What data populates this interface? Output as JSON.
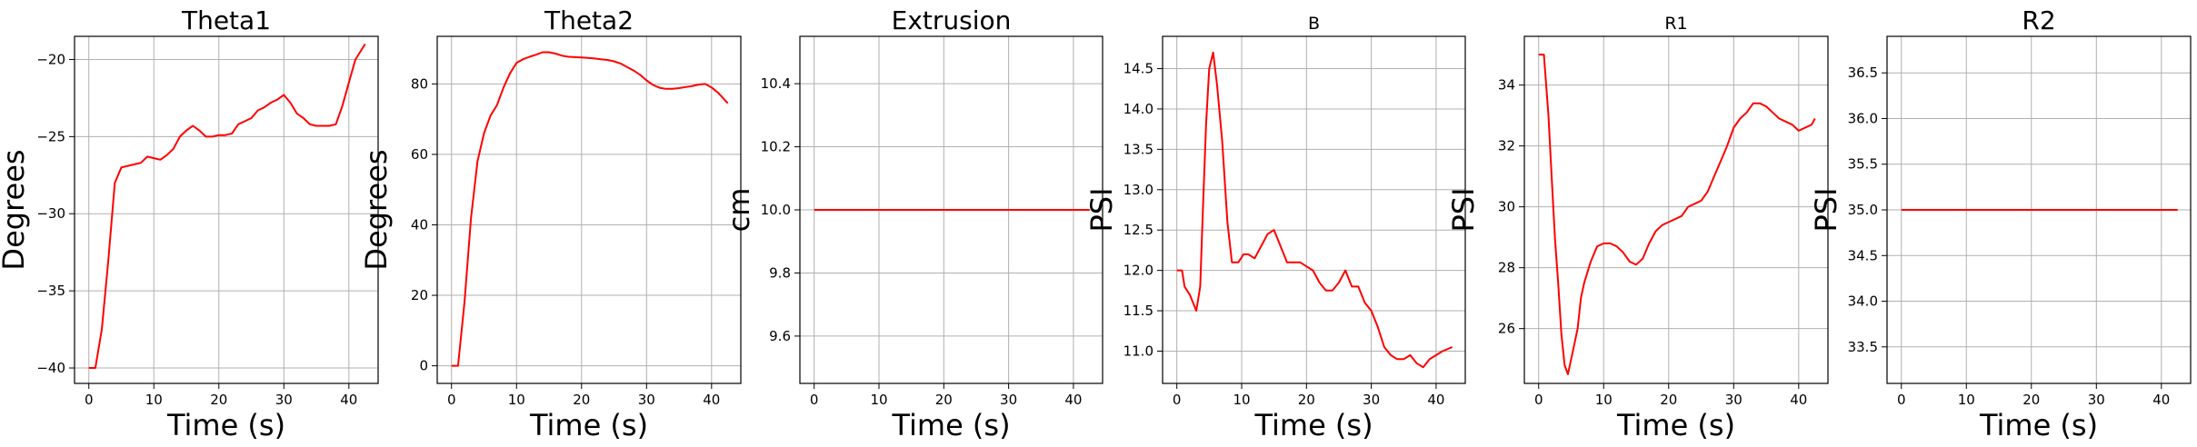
{
  "chart_data": [
    {
      "type": "line",
      "title": "Theta1",
      "xlabel": "Time (s)",
      "ylabel": "Degrees",
      "xlim": [
        -2.2,
        44.5
      ],
      "ylim": [
        -41,
        -18.5
      ],
      "xticks": [
        0,
        10,
        20,
        30,
        40
      ],
      "yticks": [
        -40,
        -35,
        -30,
        -25,
        -20
      ],
      "ytick_labels": [
        "−40",
        "−35",
        "−30",
        "−25",
        "−20"
      ],
      "grid": true,
      "series": [
        {
          "color": "#ff0000",
          "x": [
            0,
            1,
            2,
            3,
            4,
            5,
            6,
            7,
            8,
            9,
            10,
            11,
            12,
            13,
            14,
            15,
            16,
            17,
            18,
            19,
            20,
            21,
            22,
            23,
            24,
            25,
            26,
            27,
            28,
            29,
            30,
            31,
            32,
            33,
            34,
            35,
            36,
            37,
            38,
            39,
            40,
            41,
            42.5
          ],
          "y": [
            -40,
            -40,
            -37.5,
            -33,
            -28,
            -27,
            -26.9,
            -26.8,
            -26.7,
            -26.3,
            -26.4,
            -26.5,
            -26.2,
            -25.8,
            -25,
            -24.6,
            -24.3,
            -24.6,
            -25,
            -25,
            -24.9,
            -24.9,
            -24.8,
            -24.2,
            -24,
            -23.8,
            -23.3,
            -23.1,
            -22.8,
            -22.6,
            -22.3,
            -22.8,
            -23.5,
            -23.8,
            -24.2,
            -24.3,
            -24.3,
            -24.3,
            -24.2,
            -23,
            -21.5,
            -20,
            -19
          ]
        }
      ]
    },
    {
      "type": "line",
      "title": "Theta2",
      "xlabel": "Time (s)",
      "ylabel": "Degrees",
      "xlim": [
        -2.2,
        44.5
      ],
      "ylim": [
        -5,
        93.5
      ],
      "xticks": [
        0,
        10,
        20,
        30,
        40
      ],
      "yticks": [
        0,
        20,
        40,
        60,
        80
      ],
      "ytick_labels": [
        "0",
        "20",
        "40",
        "60",
        "80"
      ],
      "grid": true,
      "series": [
        {
          "color": "#ff0000",
          "x": [
            0,
            1,
            2,
            3,
            4,
            5,
            6,
            7,
            8,
            9,
            10,
            11,
            12,
            13,
            14,
            15,
            16,
            17,
            18,
            19,
            20,
            21,
            22,
            23,
            24,
            25,
            26,
            27,
            28,
            29,
            30,
            31,
            32,
            33,
            34,
            35,
            36,
            37,
            38,
            39,
            40,
            41,
            42.5
          ],
          "y": [
            0,
            0,
            18,
            42,
            58,
            66,
            71,
            74,
            79,
            83,
            86,
            87,
            87.7,
            88.3,
            89,
            89,
            88.6,
            88,
            87.7,
            87.6,
            87.5,
            87.4,
            87.2,
            87,
            86.8,
            86.4,
            85.8,
            84.8,
            83.8,
            82.6,
            81,
            79.7,
            78.9,
            78.6,
            78.6,
            78.8,
            79.1,
            79.4,
            79.8,
            80,
            79,
            77.5,
            74.5
          ]
        }
      ]
    },
    {
      "type": "line",
      "title": "Extrusion",
      "xlabel": "Time (s)",
      "ylabel": "cm",
      "xlim": [
        -2.2,
        44.5
      ],
      "ylim": [
        9.45,
        10.55
      ],
      "xticks": [
        0,
        10,
        20,
        30,
        40
      ],
      "yticks": [
        9.6,
        9.8,
        10.0,
        10.2,
        10.4
      ],
      "ytick_labels": [
        "9.6",
        "9.8",
        "10.0",
        "10.2",
        "10.4"
      ],
      "grid": true,
      "series": [
        {
          "color": "#ff0000",
          "x": [
            0,
            42.5
          ],
          "y": [
            10.0,
            10.0
          ]
        }
      ]
    },
    {
      "type": "line",
      "title": "B",
      "xlabel": "Time (s)",
      "ylabel": "PSI",
      "xlim": [
        -2.2,
        44.5
      ],
      "ylim": [
        10.6,
        14.9
      ],
      "xticks": [
        0,
        10,
        20,
        30,
        40
      ],
      "yticks": [
        11.0,
        11.5,
        12.0,
        12.5,
        13.0,
        13.5,
        14.0,
        14.5
      ],
      "ytick_labels": [
        "11.0",
        "11.5",
        "12.0",
        "12.5",
        "13.0",
        "13.5",
        "14.0",
        "14.5"
      ],
      "grid": true,
      "series": [
        {
          "color": "#ff0000",
          "x": [
            0,
            0.8,
            1.2,
            2,
            3,
            3.6,
            4,
            4.5,
            5,
            5.6,
            6.2,
            7,
            7.8,
            8.5,
            9.5,
            10.3,
            11,
            12,
            13,
            14,
            15,
            16,
            17,
            18,
            19,
            20,
            21,
            22,
            23,
            24,
            25,
            26,
            27,
            28,
            29,
            30,
            31,
            32,
            33,
            34,
            35,
            36,
            37,
            38,
            39,
            40,
            41,
            42.5
          ],
          "y": [
            12.0,
            12.0,
            11.8,
            11.7,
            11.5,
            11.8,
            12.7,
            13.8,
            14.5,
            14.7,
            14.3,
            13.6,
            12.6,
            12.1,
            12.1,
            12.2,
            12.2,
            12.15,
            12.3,
            12.45,
            12.5,
            12.3,
            12.1,
            12.1,
            12.1,
            12.05,
            12.0,
            11.85,
            11.75,
            11.75,
            11.85,
            12.0,
            11.8,
            11.8,
            11.6,
            11.5,
            11.3,
            11.05,
            10.95,
            10.9,
            10.9,
            10.95,
            10.85,
            10.8,
            10.9,
            10.95,
            11.0,
            11.05
          ]
        }
      ]
    },
    {
      "type": "line",
      "title": "R1",
      "xlabel": "Time (s)",
      "ylabel": "PSI",
      "xlim": [
        -2.2,
        44.5
      ],
      "ylim": [
        24.2,
        35.6
      ],
      "xticks": [
        0,
        10,
        20,
        30,
        40
      ],
      "yticks": [
        26,
        28,
        30,
        32,
        34
      ],
      "ytick_labels": [
        "26",
        "28",
        "30",
        "32",
        "34"
      ],
      "grid": true,
      "series": [
        {
          "color": "#ff0000",
          "x": [
            0,
            0.8,
            1.5,
            2,
            2.5,
            3,
            3.5,
            4,
            4.5,
            5,
            5.5,
            6,
            6.5,
            7,
            8,
            9,
            10,
            11,
            12,
            13,
            14,
            15,
            16,
            17,
            18,
            19,
            20,
            21,
            22,
            23,
            24,
            25,
            26,
            27,
            28,
            29,
            30,
            31,
            32,
            33,
            34,
            35,
            36,
            37,
            38,
            39,
            40,
            41,
            42,
            42.5
          ],
          "y": [
            35,
            35,
            33,
            31,
            29,
            27.5,
            25.8,
            24.8,
            24.5,
            25,
            25.5,
            26,
            27,
            27.5,
            28.2,
            28.7,
            28.8,
            28.8,
            28.7,
            28.5,
            28.2,
            28.1,
            28.3,
            28.8,
            29.2,
            29.4,
            29.5,
            29.6,
            29.7,
            30.0,
            30.1,
            30.2,
            30.5,
            31.0,
            31.5,
            32.0,
            32.6,
            32.9,
            33.1,
            33.4,
            33.4,
            33.3,
            33.1,
            32.9,
            32.8,
            32.7,
            32.5,
            32.6,
            32.7,
            32.9
          ]
        }
      ]
    },
    {
      "type": "line",
      "title": "R2",
      "xlabel": "Time (s)",
      "ylabel": "PSI",
      "xlim": [
        -2.2,
        44.5
      ],
      "ylim": [
        33.1,
        36.9
      ],
      "xticks": [
        0,
        10,
        20,
        30,
        40
      ],
      "yticks": [
        33.5,
        34.0,
        34.5,
        35.0,
        35.5,
        36.0,
        36.5
      ],
      "ytick_labels": [
        "33.5",
        "34.0",
        "34.5",
        "35.0",
        "35.5",
        "36.0",
        "36.5"
      ],
      "grid": true,
      "series": [
        {
          "color": "#ff0000",
          "x": [
            0,
            42.5
          ],
          "y": [
            35.0,
            35.0
          ]
        }
      ]
    }
  ]
}
